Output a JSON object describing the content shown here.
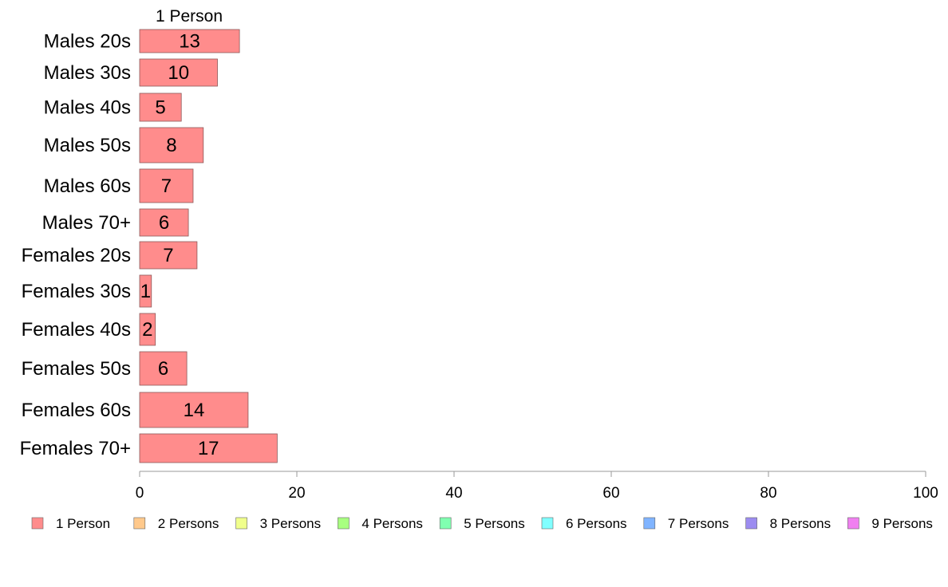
{
  "chart_data": {
    "type": "bar",
    "orientation": "horizontal",
    "column_header": "1 Person",
    "categories": [
      "Males 20s",
      "Males 30s",
      "Males 40s",
      "Males 50s",
      "Males 60s",
      "Males 70+",
      "Females 20s",
      "Females 30s",
      "Females 40s",
      "Females 50s",
      "Females 60s",
      "Females 70+"
    ],
    "series": [
      {
        "name": "1 Person",
        "color": "#ff8c8c",
        "values": [
          13,
          10,
          5,
          8,
          7,
          6,
          7,
          1,
          2,
          6,
          14,
          17
        ],
        "plotted_values": [
          12.7,
          9.9,
          5.3,
          8.1,
          6.8,
          6.2,
          7.3,
          1.5,
          2.0,
          6.0,
          13.8,
          17.5
        ]
      }
    ],
    "xlim": [
      0,
      100
    ],
    "x_ticks": [
      "0",
      "20",
      "40",
      "60",
      "80",
      "100"
    ],
    "grid": false,
    "legend_position": "bottom",
    "legend": [
      {
        "label": "1 Person",
        "color": "#ff8c8c"
      },
      {
        "label": "2 Persons",
        "color": "#ffc98c"
      },
      {
        "label": "3 Persons",
        "color": "#f0ff8c"
      },
      {
        "label": "4 Persons",
        "color": "#a8ff80"
      },
      {
        "label": "5 Persons",
        "color": "#80ffb0"
      },
      {
        "label": "6 Persons",
        "color": "#80ffff"
      },
      {
        "label": "7 Persons",
        "color": "#80b4ff"
      },
      {
        "label": "8 Persons",
        "color": "#9c8cf0"
      },
      {
        "label": "9 Persons",
        "color": "#f080f0"
      }
    ]
  }
}
